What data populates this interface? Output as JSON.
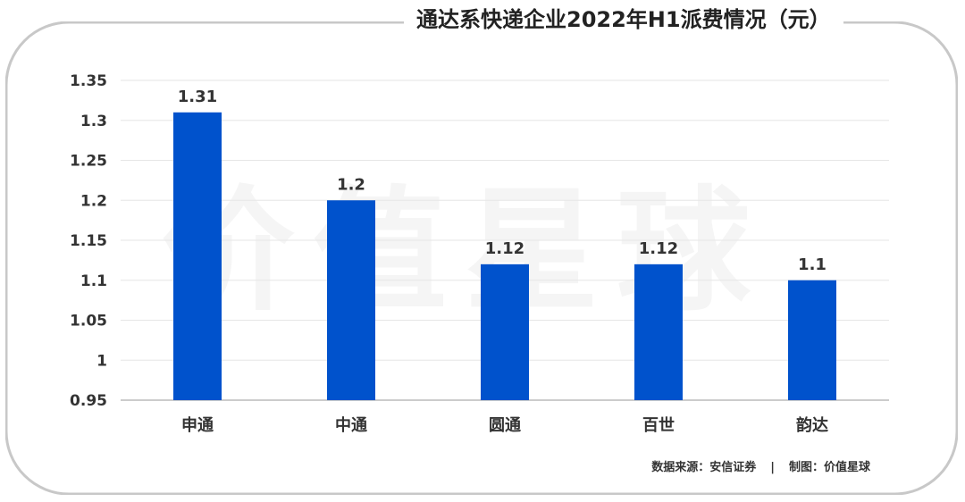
{
  "title": "通达系快递企业2022年H1派费情况（元）",
  "watermark": "价值星球",
  "source": "数据来源：安信证券",
  "separator": "|",
  "maker": "制图：价值星球",
  "colors": {
    "bar": "#0052cc",
    "grid": "#e6e6e6",
    "frame": "#c8c8c8"
  },
  "chart_data": {
    "type": "bar",
    "title": "通达系快递企业2022年H1派费情况（元）",
    "categories": [
      "申通",
      "中通",
      "圆通",
      "百世",
      "韵达"
    ],
    "values": [
      1.31,
      1.2,
      1.12,
      1.12,
      1.1
    ],
    "data_labels": [
      "1.31",
      "1.2",
      "1.12",
      "1.12",
      "1.1"
    ],
    "yticks": [
      "0.95",
      "1",
      "1.05",
      "1.1",
      "1.15",
      "1.2",
      "1.25",
      "1.3",
      "1.35"
    ],
    "ylim": [
      0.95,
      1.35
    ],
    "grid": true,
    "legend": "none"
  }
}
